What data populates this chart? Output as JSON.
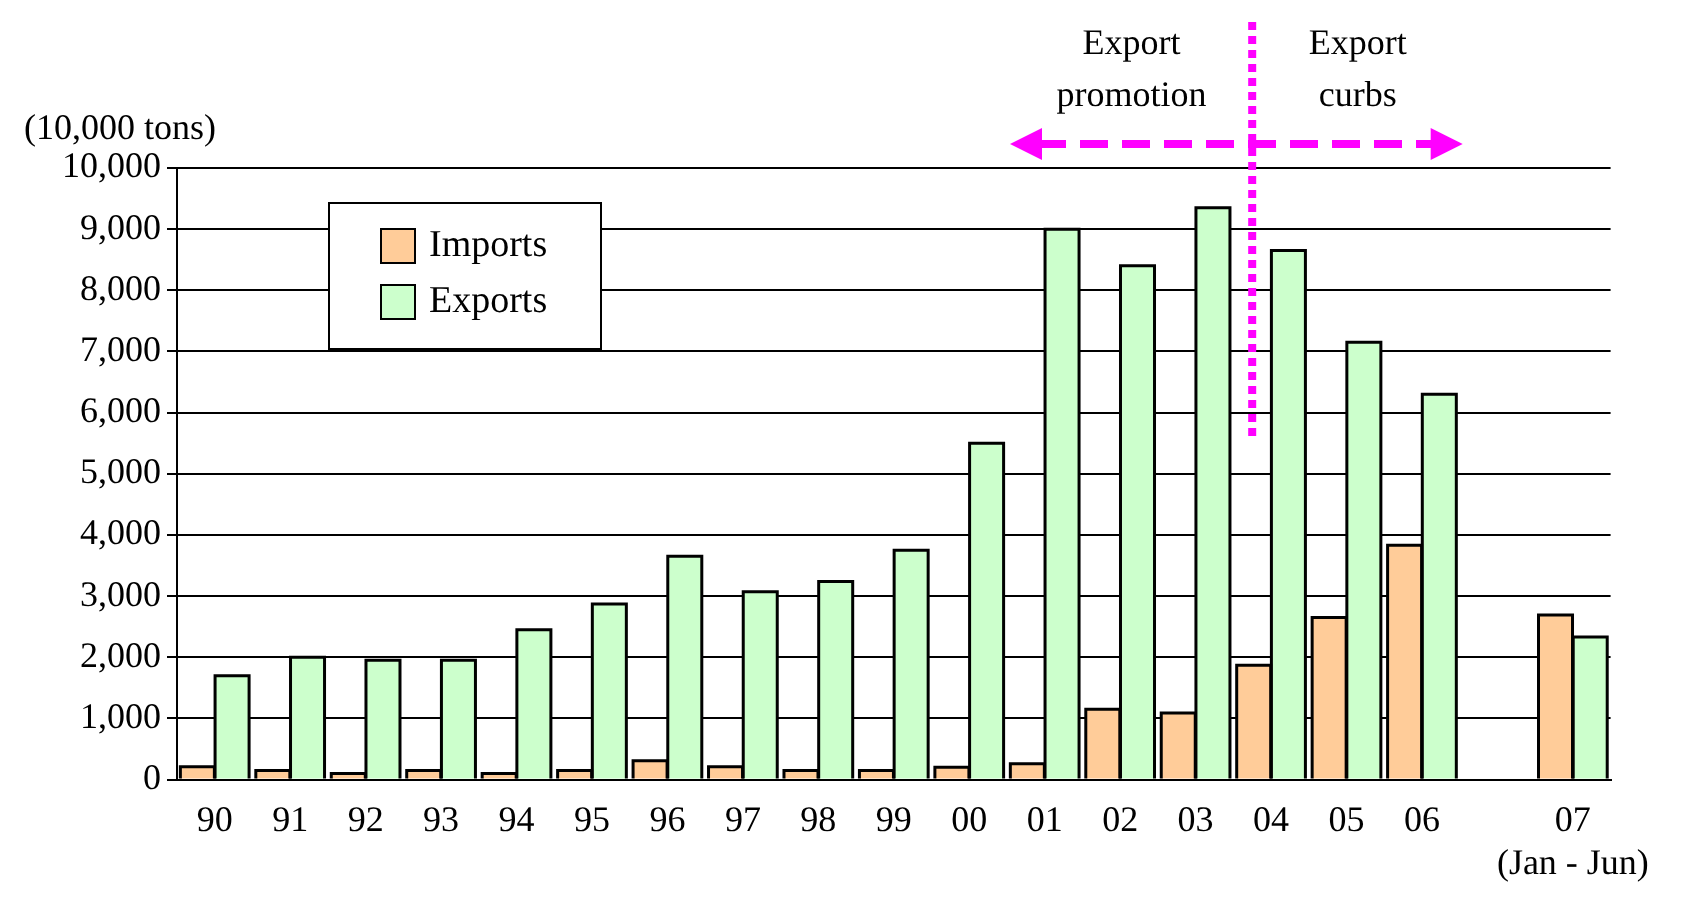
{
  "chart_data": {
    "type": "bar",
    "ylabel": "(10,000 tons)",
    "categories": [
      "90",
      "91",
      "92",
      "93",
      "94",
      "95",
      "96",
      "97",
      "98",
      "99",
      "00",
      "01",
      "02",
      "03",
      "04",
      "05",
      "06",
      null,
      "07\n(Jan - Jun)"
    ],
    "series": [
      {
        "name": "Imports",
        "color": "#ffcc99",
        "values": [
          210,
          150,
          100,
          150,
          100,
          150,
          310,
          210,
          150,
          150,
          200,
          260,
          1150,
          1090,
          1870,
          2650,
          3830,
          null,
          2690
        ]
      },
      {
        "name": "Exports",
        "color": "#ccffcc",
        "values": [
          1700,
          2000,
          1950,
          1950,
          2450,
          2870,
          3650,
          3070,
          3240,
          3750,
          5500,
          9000,
          8400,
          9350,
          8650,
          7150,
          6300,
          null,
          2330
        ]
      }
    ],
    "ylim": [
      0,
      10000
    ],
    "yticks": [
      0,
      {
        "value": 1000,
        "label": "1,000"
      },
      {
        "value": 2000,
        "label": "2,000"
      },
      {
        "value": 3000,
        "label": "3,000"
      },
      {
        "value": 4000,
        "label": "4,000"
      },
      {
        "value": 5000,
        "label": "5,000"
      },
      {
        "value": 6000,
        "label": "6,000"
      },
      {
        "value": 7000,
        "label": "7,000"
      },
      {
        "value": 8000,
        "label": "8,000"
      },
      {
        "value": 9000,
        "label": "9,000"
      },
      {
        "value": 10000,
        "label": "10,000"
      }
    ],
    "grid": "y",
    "legend": "top left",
    "ref_lines": [
      {
        "axis": "x",
        "value": "04",
        "color": "#ff00ff",
        "line_style": "dotted"
      }
    ],
    "annotations": [
      "Export\npromotion",
      "Export\ncurbs"
    ]
  }
}
